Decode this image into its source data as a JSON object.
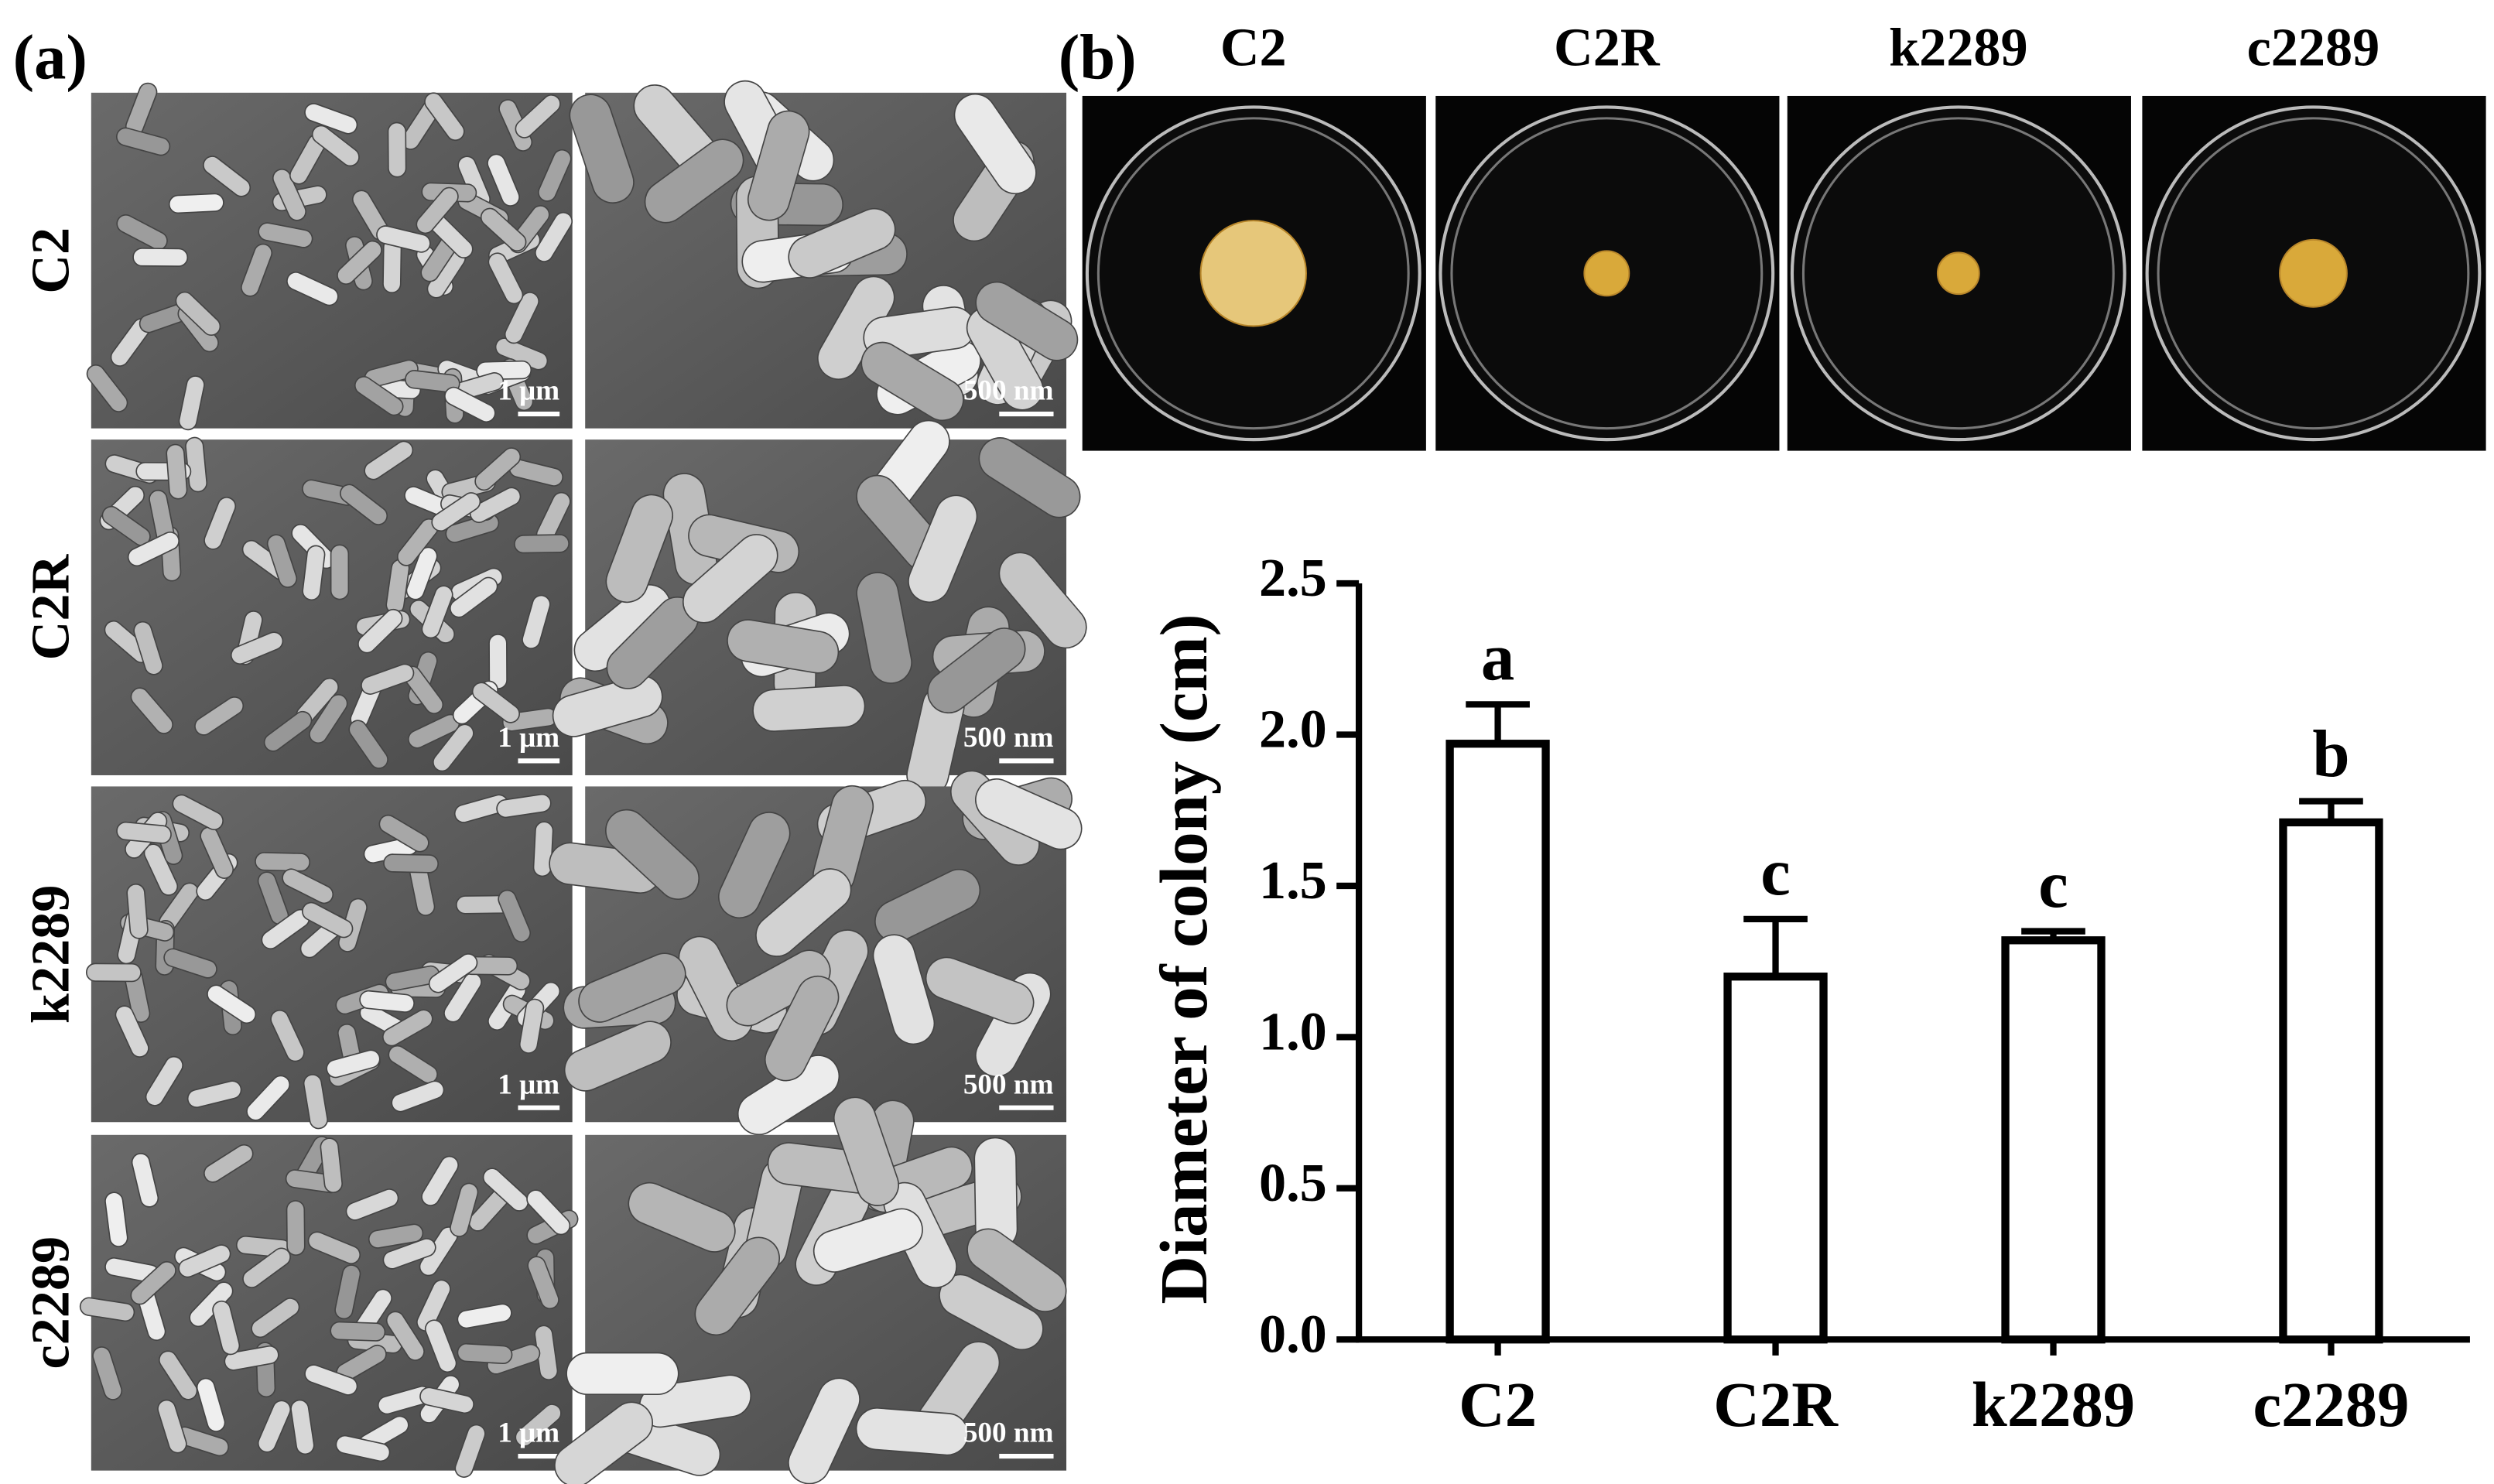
{
  "panel_a": {
    "label": "(a)",
    "rows": [
      {
        "name": "C2",
        "scale_bars": [
          "1 μm",
          "500 nm"
        ]
      },
      {
        "name": "C2R",
        "scale_bars": [
          "1 μm",
          "500 nm"
        ]
      },
      {
        "name": "k2289",
        "scale_bars": [
          "1 μm",
          "500 nm"
        ]
      },
      {
        "name": "c2289",
        "scale_bars": [
          "1 μm",
          "500 nm"
        ]
      }
    ]
  },
  "panel_b": {
    "label": "(b)",
    "plates": [
      "C2",
      "C2R",
      "k2289",
      "c2289"
    ]
  },
  "chart_data": {
    "type": "bar",
    "y_label": "Diameter of colony (cm)",
    "categories": [
      "C2",
      "C2R",
      "k2289",
      "c2289"
    ],
    "values": [
      1.97,
      1.2,
      1.32,
      1.71
    ],
    "errors": [
      0.13,
      0.19,
      0.03,
      0.07
    ],
    "annotations": [
      "a",
      "c",
      "c",
      "b"
    ],
    "color": "#ffffff",
    "ylim": [
      0,
      2.5
    ],
    "yticks": [
      {
        "value": 0,
        "label": "0.0"
      },
      0.5,
      {
        "value": 1,
        "label": "1.0"
      },
      1.5,
      {
        "value": 2,
        "label": "2.0"
      },
      2.5
    ]
  }
}
